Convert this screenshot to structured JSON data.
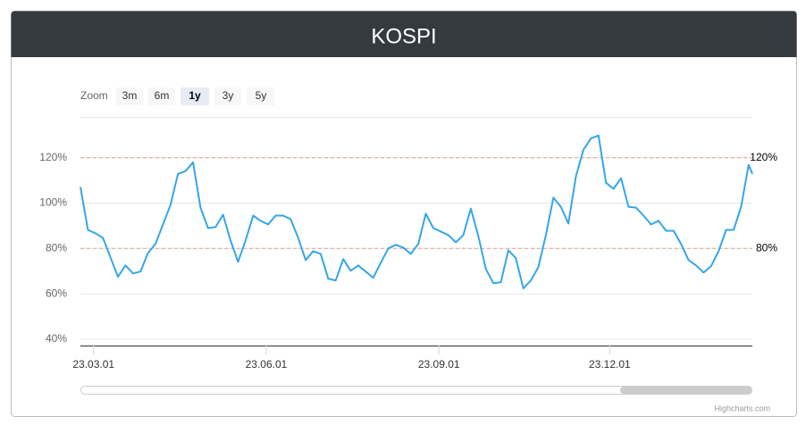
{
  "chart_data": {
    "type": "line",
    "title": "KOSPI",
    "zoom": {
      "label": "Zoom",
      "buttons": [
        "3m",
        "6m",
        "1y",
        "3y",
        "5y"
      ],
      "selected": 2
    },
    "x": [
      "2023-02-22",
      "2023-02-26",
      "2023-03-02",
      "2023-03-06",
      "2023-03-10",
      "2023-03-14",
      "2023-03-18",
      "2023-03-22",
      "2023-03-26",
      "2023-03-30",
      "2023-04-03",
      "2023-04-07",
      "2023-04-11",
      "2023-04-15",
      "2023-04-19",
      "2023-04-23",
      "2023-04-27",
      "2023-05-01",
      "2023-05-05",
      "2023-05-09",
      "2023-05-13",
      "2023-05-17",
      "2023-05-21",
      "2023-05-25",
      "2023-05-29",
      "2023-06-02",
      "2023-06-06",
      "2023-06-10",
      "2023-06-14",
      "2023-06-18",
      "2023-06-22",
      "2023-06-26",
      "2023-06-30",
      "2023-07-04",
      "2023-07-08",
      "2023-07-12",
      "2023-07-16",
      "2023-07-20",
      "2023-07-24",
      "2023-07-28",
      "2023-08-01",
      "2023-08-05",
      "2023-08-09",
      "2023-08-13",
      "2023-08-17",
      "2023-08-21",
      "2023-08-25",
      "2023-08-29",
      "2023-09-02",
      "2023-09-06",
      "2023-09-10",
      "2023-09-14",
      "2023-09-18",
      "2023-09-22",
      "2023-09-26",
      "2023-09-30",
      "2023-10-04",
      "2023-10-08",
      "2023-10-12",
      "2023-10-16",
      "2023-10-20",
      "2023-10-24",
      "2023-10-28",
      "2023-11-01",
      "2023-11-05",
      "2023-11-09",
      "2023-11-13",
      "2023-11-17",
      "2023-11-21",
      "2023-11-25",
      "2023-11-29",
      "2023-12-03",
      "2023-12-07",
      "2023-12-11",
      "2023-12-15",
      "2023-12-19",
      "2023-12-23",
      "2023-12-27",
      "2023-12-31",
      "2024-01-04",
      "2024-01-08",
      "2024-01-12",
      "2024-01-16",
      "2024-01-20",
      "2024-01-24",
      "2024-01-28",
      "2024-02-01",
      "2024-02-05",
      "2024-02-09",
      "2024-02-13",
      "2024-02-15"
    ],
    "series": [
      {
        "name": "KOSPI",
        "color": "#35a6e8",
        "values": [
          107.1,
          88.2,
          86.7,
          84.7,
          76.1,
          67.5,
          72.5,
          69.0,
          69.8,
          78.0,
          82.0,
          90.6,
          99.2,
          112.9,
          114.1,
          118.0,
          98.0,
          89.0,
          89.4,
          94.9,
          83.5,
          74.1,
          83.5,
          94.5,
          92.2,
          90.6,
          94.5,
          94.5,
          92.9,
          84.7,
          74.9,
          78.8,
          77.6,
          66.7,
          65.9,
          75.3,
          70.2,
          72.5,
          69.8,
          67.1,
          73.7,
          80.0,
          81.6,
          80.4,
          77.6,
          82.0,
          95.3,
          89.0,
          87.5,
          85.9,
          82.7,
          85.9,
          97.6,
          85.5,
          71.0,
          64.7,
          65.1,
          79.2,
          75.7,
          62.4,
          65.9,
          71.8,
          85.9,
          102.4,
          98.4,
          91.0,
          111.8,
          123.5,
          128.6,
          129.8,
          109.0,
          106.3,
          111.0,
          98.4,
          98.0,
          94.5,
          90.6,
          92.2,
          87.8,
          87.8,
          82.0,
          74.9,
          72.5,
          69.4,
          72.2,
          78.8,
          88.2,
          88.2,
          98.4,
          116.9,
          112.9
        ]
      }
    ],
    "xlim": [
      "2023-02-22",
      "2024-02-15"
    ],
    "xticks": [
      {
        "value": "2023-03-01",
        "label": "23.03.01"
      },
      {
        "value": "2023-06-01",
        "label": "23.06.01"
      },
      {
        "value": "2023-09-01",
        "label": "23.09.01"
      },
      {
        "value": "2023-12-01",
        "label": "23.12.01"
      }
    ],
    "ylim": [
      37.2,
      138
    ],
    "yticks": [
      {
        "value": 40,
        "label": "40%"
      },
      {
        "value": 60,
        "label": "60%"
      },
      {
        "value": 80,
        "label": "80%"
      },
      {
        "value": 100,
        "label": "100%"
      },
      {
        "value": 120,
        "label": "120%"
      }
    ],
    "grid": true,
    "plot_lines": [
      {
        "value": 120,
        "label": "120%",
        "color": "#e8a08c"
      },
      {
        "value": 80,
        "label": "80%",
        "color": "#e8a08c"
      }
    ],
    "credits": "Highcharts.com"
  }
}
